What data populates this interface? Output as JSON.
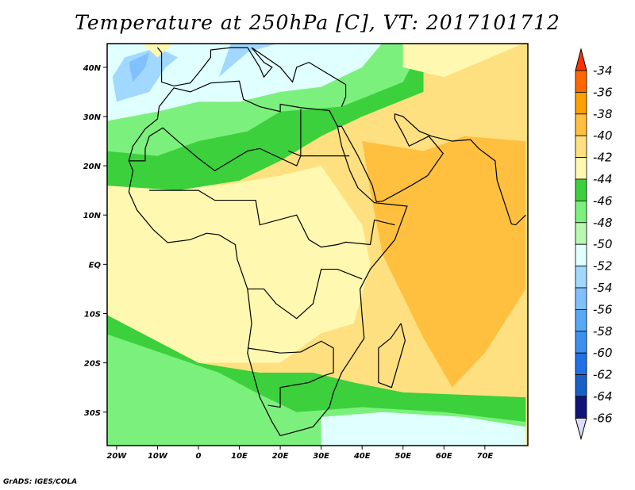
{
  "title": "Temperature at 250hPa [C], VT: 2017101712",
  "credit": "GrADS: IGES/COLA",
  "map": {
    "lon_range": [
      -22.3,
      80.5
    ],
    "lat_range": [
      -36.8,
      44.8
    ],
    "lon_ticks": [
      {
        "v": -20,
        "label": "20W"
      },
      {
        "v": -10,
        "label": "10W"
      },
      {
        "v": 0,
        "label": "0"
      },
      {
        "v": 10,
        "label": "10E"
      },
      {
        "v": 20,
        "label": "20E"
      },
      {
        "v": 30,
        "label": "30E"
      },
      {
        "v": 40,
        "label": "40E"
      },
      {
        "v": 50,
        "label": "50E"
      },
      {
        "v": 60,
        "label": "60E"
      },
      {
        "v": 70,
        "label": "70E"
      }
    ],
    "lat_ticks": [
      {
        "v": 40,
        "label": "40N"
      },
      {
        "v": 30,
        "label": "30N"
      },
      {
        "v": 20,
        "label": "20N"
      },
      {
        "v": 10,
        "label": "10N"
      },
      {
        "v": 0,
        "label": "EQ"
      },
      {
        "v": -10,
        "label": "10S"
      },
      {
        "v": -20,
        "label": "20S"
      },
      {
        "v": -30,
        "label": "30S"
      }
    ]
  },
  "colorbar": {
    "top_arrow_color": "#ff3300",
    "bottom_arrow_color": "#dcdcff",
    "colors": [
      "#ff6600",
      "#ffa000",
      "#ffc040",
      "#ffe080",
      "#fff8b0",
      "#3cd03c",
      "#7cf07c",
      "#b8f8b0",
      "#e0ffff",
      "#a0d8ff",
      "#80c0ff",
      "#58a8f8",
      "#3c90f0",
      "#2070e8",
      "#1860c8",
      "#101478"
    ],
    "labels": [
      "-34",
      "-36",
      "-38",
      "-40",
      "-42",
      "-44",
      "-46",
      "-48",
      "-50",
      "-52",
      "-54",
      "-56",
      "-58",
      "-60",
      "-62",
      "-64",
      "-66"
    ]
  }
}
